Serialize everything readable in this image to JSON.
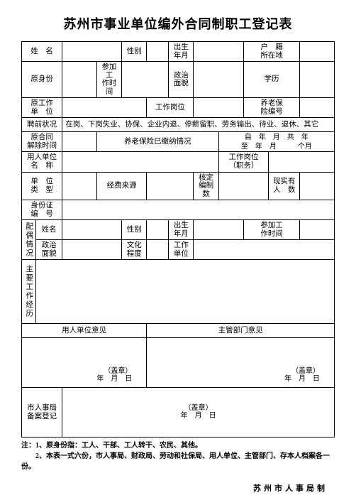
{
  "title": "苏州市事业单位编外合同制职工登记表",
  "row1": {
    "name": "姓　名",
    "sex": "性别",
    "birth": "出生\n年月",
    "huji": "户　籍\n所在地"
  },
  "row2": {
    "origin": "原身份",
    "join": "参加工\n作时间",
    "zhengzhi": "政治\n面貌",
    "xueli": "学历"
  },
  "row3": {
    "orig_unit": "原工作\n单　位",
    "post": "工作岗位",
    "insurance": "养老保\n险编号"
  },
  "row4": {
    "status": "聘前状况",
    "options": "在岗、下岗失业、协保、企业内退、停薪留职、劳务输出、待业、退休、其它"
  },
  "row5": {
    "a": "原合同\n解除时间",
    "b": "养老保险已缴纳情况",
    "c_top": "自　年　月　共　年",
    "c_bot": "至　年　月　　　个月"
  },
  "row6": {
    "a": "用人单位\n名　称",
    "b": "工作岗位\n（职务）"
  },
  "row7": {
    "a": "单　位\n类　型",
    "b": "经费来源",
    "c": "核定\n编制数",
    "d": "现实有\n人　数"
  },
  "row8": {
    "a": "身份证\n编　号"
  },
  "spouse": {
    "header": "配偶情况",
    "name": "姓名",
    "sex": "性别",
    "birth": "出生\n年月",
    "join": "参加工\n作时间",
    "zhengzhi": "政治\n面貌",
    "wenhua": "文化\n程度",
    "unit": "工作\n单位"
  },
  "resume": "主要工作经历",
  "opinions": {
    "employer": "用人单位意见",
    "dept": "主管部门意见",
    "seal_date": "（盖章）\n年　月　日",
    "record": "市人事局\n备案登记",
    "record_seal": "（盖章）\n年　月　日"
  },
  "notes": {
    "line1": "注：1、原身份指：工人、干部、工人转干、农民、其他。",
    "line2": "　　2、本表一式六份，市人事局、财政局、劳动和社保局、用人单位、主管部门、存本人档案各一份。"
  },
  "footer": "苏州市人事局制"
}
